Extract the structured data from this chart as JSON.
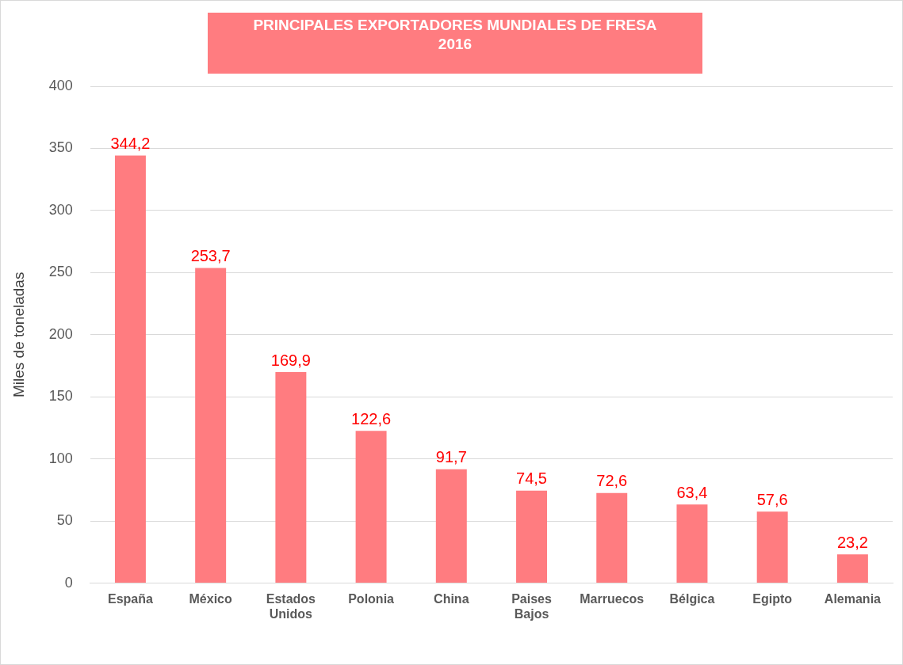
{
  "chart_data": {
    "type": "bar",
    "title": "PRINCIPALES EXPORTADORES MUNDIALES DE FRESA\n2016",
    "ylabel": "Miles de toneladas",
    "categories": [
      "España",
      "México",
      "Estados Unidos",
      "Polonia",
      "China",
      "Paises Bajos",
      "Marruecos",
      "Bélgica",
      "Egipto",
      "Alemania"
    ],
    "values": [
      344.2,
      253.7,
      169.9,
      122.6,
      91.7,
      74.5,
      72.6,
      63.4,
      57.6,
      23.2
    ],
    "value_labels": [
      "344,2",
      "253,7",
      "169,9",
      "122,6",
      "91,7",
      "74,5",
      "72,6",
      "63,4",
      "57,6",
      "23,2"
    ],
    "color": "#ff7c80",
    "ylim": [
      0,
      400
    ],
    "yticks": [
      0,
      50,
      100,
      150,
      200,
      250,
      300,
      350,
      400
    ],
    "grid": "y",
    "legend": false
  }
}
